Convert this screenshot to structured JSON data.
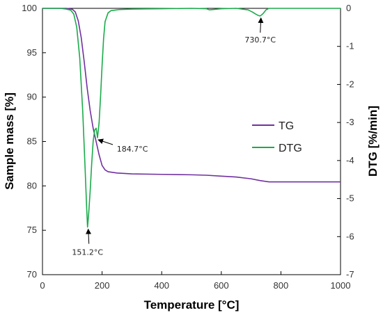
{
  "chart_data": {
    "type": "line",
    "xlabel": "Temperature [°C]",
    "ylabel": "Sample mass [%]",
    "y2label": "DTG [%/min]",
    "xlim": [
      0,
      1000
    ],
    "ylim": [
      70,
      100
    ],
    "y2lim": [
      -7,
      0
    ],
    "xticks": [
      "0",
      "200",
      "400",
      "600",
      "800",
      "1000"
    ],
    "yticks": [
      "70",
      "75",
      "80",
      "85",
      "90",
      "95",
      "100"
    ],
    "y2ticks": [
      "-7",
      "-6",
      "-5",
      "-4",
      "-3",
      "-2",
      "-1",
      "0"
    ],
    "grid": false,
    "legend_position": "center-right",
    "colors": {
      "TG": "#7030a0",
      "DTG": "#1aab4a"
    },
    "series": [
      {
        "name": "TG",
        "axis": "left",
        "x": [
          0,
          80,
          100,
          110,
          120,
          130,
          140,
          150,
          160,
          170,
          180,
          190,
          200,
          210,
          220,
          250,
          300,
          400,
          500,
          550,
          600,
          650,
          700,
          730,
          760,
          800,
          900,
          1000
        ],
        "y": [
          100,
          100,
          99.9,
          99.6,
          98.6,
          96.7,
          94.0,
          91.0,
          88.5,
          86.5,
          85.0,
          83.5,
          82.3,
          81.8,
          81.6,
          81.45,
          81.35,
          81.3,
          81.25,
          81.2,
          81.1,
          81.0,
          80.8,
          80.6,
          80.45,
          80.45,
          80.45,
          80.45
        ]
      },
      {
        "name": "DTG",
        "axis": "right",
        "x": [
          0,
          60,
          80,
          95,
          105,
          115,
          125,
          135,
          143,
          148,
          151.2,
          155,
          160,
          165,
          170,
          175,
          180,
          184.7,
          190,
          195,
          200,
          205,
          210,
          220,
          230,
          260,
          300,
          400,
          500,
          550,
          560,
          600,
          650,
          690,
          705,
          715,
          725,
          730.7,
          740,
          750,
          760,
          800,
          900,
          1000
        ],
        "y": [
          0,
          0,
          -0.02,
          -0.05,
          -0.15,
          -0.5,
          -1.3,
          -2.7,
          -4.2,
          -5.2,
          -5.75,
          -5.4,
          -4.8,
          -4.1,
          -3.5,
          -3.2,
          -3.15,
          -3.4,
          -3.0,
          -2.3,
          -1.5,
          -0.8,
          -0.35,
          -0.12,
          -0.06,
          -0.03,
          -0.02,
          -0.01,
          0,
          -0.01,
          -0.04,
          -0.01,
          0,
          -0.04,
          -0.1,
          -0.15,
          -0.19,
          -0.2,
          -0.14,
          -0.04,
          0,
          0,
          0,
          0
        ]
      }
    ],
    "annotations": [
      {
        "text": "151.2°C",
        "x": 151.2,
        "y2": -5.75
      },
      {
        "text": "184.7°C",
        "x": 184.7,
        "y2": -3.4
      },
      {
        "text": "730.7°C",
        "x": 730.7,
        "y2": -0.2
      }
    ],
    "legend": [
      {
        "label": "TG",
        "series": "TG"
      },
      {
        "label": "DTG",
        "series": "DTG"
      }
    ]
  }
}
